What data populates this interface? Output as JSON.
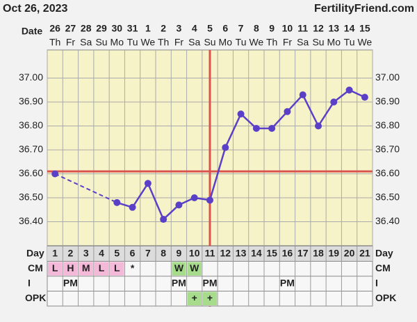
{
  "header": {
    "date": "Oct 26, 2023",
    "site": "FertilityFriend.com"
  },
  "chart_data": {
    "type": "line",
    "date_label": "Date",
    "dates": [
      "26",
      "27",
      "28",
      "29",
      "30",
      "31",
      "1",
      "2",
      "3",
      "4",
      "5",
      "6",
      "7",
      "8",
      "9",
      "10",
      "11",
      "12",
      "13",
      "14",
      "15"
    ],
    "weekdays": [
      "Th",
      "Fr",
      "Sa",
      "Su",
      "Mo",
      "Tu",
      "We",
      "Th",
      "Fr",
      "Sa",
      "Su",
      "Mo",
      "Tu",
      "We",
      "Th",
      "Fr",
      "Sa",
      "Su",
      "Mo",
      "Tu",
      "We"
    ],
    "day_label": "Day",
    "categories": [
      1,
      2,
      3,
      4,
      5,
      6,
      7,
      8,
      9,
      10,
      11,
      12,
      13,
      14,
      15,
      16,
      17,
      18,
      19,
      20,
      21
    ],
    "values": [
      36.6,
      null,
      null,
      null,
      36.48,
      36.46,
      36.56,
      36.41,
      36.47,
      36.5,
      36.49,
      36.71,
      36.85,
      36.79,
      36.79,
      36.86,
      36.93,
      36.8,
      36.9,
      36.95,
      36.92
    ],
    "color": "#5a3fc7",
    "coverline": 36.61,
    "ovulation_day": 11,
    "marker_color": "#d9534f",
    "ylim": [
      36.3,
      37.1
    ],
    "yticks": [
      {
        "value": 36.4,
        "label": "36.40"
      },
      {
        "value": 36.5,
        "label": "36.50"
      },
      {
        "value": 36.6,
        "label": "36.60"
      },
      {
        "value": 36.7,
        "label": "36.70"
      },
      {
        "value": 36.8,
        "label": "36.80"
      },
      {
        "value": 36.9,
        "label": "36.90"
      },
      {
        "value": 37.0,
        "label": "37.00"
      }
    ],
    "grid": true,
    "rows": [
      {
        "label": "CM",
        "cells": [
          {
            "text": "L",
            "color": "#f4b8d8"
          },
          {
            "text": "H",
            "color": "#f4b8d8"
          },
          {
            "text": "M",
            "color": "#f4b8d8"
          },
          {
            "text": "L",
            "color": "#f4b8d8"
          },
          {
            "text": "L",
            "color": "#f4b8d8"
          },
          {
            "text": "*"
          },
          null,
          null,
          {
            "text": "W",
            "color": "#a6dc8c"
          },
          {
            "text": "W",
            "color": "#a6dc8c"
          },
          null,
          null,
          null,
          null,
          null,
          null,
          null,
          null,
          null,
          null,
          null
        ]
      },
      {
        "label": "I",
        "cells": [
          null,
          {
            "text": "PM"
          },
          null,
          null,
          null,
          null,
          null,
          null,
          {
            "text": "PM"
          },
          null,
          {
            "text": "PM"
          },
          null,
          null,
          null,
          null,
          {
            "text": "PM"
          },
          null,
          null,
          null,
          null,
          null
        ]
      },
      {
        "label": "OPK",
        "cells": [
          null,
          null,
          null,
          null,
          null,
          null,
          null,
          null,
          null,
          {
            "text": "+",
            "color": "#a6dc8c"
          },
          {
            "text": "+",
            "color": "#a6dc8c"
          },
          null,
          null,
          null,
          null,
          null,
          null,
          null,
          null,
          null,
          null
        ]
      }
    ]
  }
}
